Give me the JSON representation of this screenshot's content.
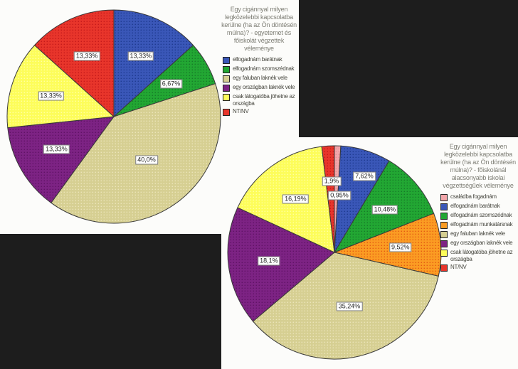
{
  "background_color": "#1d1d1d",
  "panel_color": "#fcfcfa",
  "chart_data": [
    {
      "type": "pie",
      "title": "Egy cigánnyal milyen legközelebbi kapcsolatba kerülne (ha az Ön döntésén múlna)? - egyetemet és főiskolát végzettek véleménye",
      "legend_position": "right",
      "slices": [
        {
          "label": "elfogadnám barátnak",
          "value": 13.33,
          "display": "13,33%",
          "color": "#3a57b8",
          "dot": "#1e3a8f"
        },
        {
          "label": "elfogadnám szomszédnak",
          "value": 6.67,
          "display": "6,67%",
          "color": "#22a733",
          "dot": "#157a28"
        },
        {
          "label": "egy faluban laknék vele",
          "value": 40.0,
          "display": "40,0%",
          "color": "#d6cf92",
          "dot": "#ece5bb",
          "label_offset": [
            46,
            61
          ]
        },
        {
          "label": "egy országban laknék vele",
          "value": 13.33,
          "display": "13,33%",
          "color": "#7d2384",
          "dot": "#5e1264"
        },
        {
          "label": "csak látogatóba jöhetne az országba",
          "value": 13.33,
          "display": "13,33%",
          "color": "#fdfd5a",
          "dot": "#ffffa8"
        },
        {
          "label": "NT/NV",
          "value": 13.33,
          "display": "13,33%",
          "color": "#e8352b",
          "dot": "#c4181a"
        }
      ]
    },
    {
      "type": "pie",
      "title": "Egy cigánnyal milyen legközelebbi kapcsolatba kerülne (ha az Ön döntésén múlna)? - főiskolánál alacsonyabb iskolai végzettségűek véleménye",
      "legend_position": "right",
      "slices": [
        {
          "label": "családba fogadnám",
          "value": 0.95,
          "display": "0,95%",
          "color": "#f2a6aa",
          "dot": "#e8888f",
          "label_offset": [
            7,
            -80
          ]
        },
        {
          "label": "elfogadnám barátnak",
          "value": 7.62,
          "display": "7,62%",
          "color": "#3a57b8",
          "dot": "#1e3a8f",
          "label_offset": [
            42,
            -107
          ]
        },
        {
          "label": "elfogadnám szomszédnak",
          "value": 10.48,
          "display": "10,48%",
          "color": "#22a733",
          "dot": "#157a28"
        },
        {
          "label": "elfogadnám munkatársnak",
          "value": 9.52,
          "display": "9,52%",
          "color": "#fb9c23",
          "dot": "#e25812"
        },
        {
          "label": "egy faluban laknék vele",
          "value": 35.24,
          "display": "35,24%",
          "color": "#d6cf92",
          "dot": "#ece5bb",
          "label_offset": [
            21,
            76
          ]
        },
        {
          "label": "egy országban laknék vele",
          "value": 18.1,
          "display": "18,1%",
          "color": "#7d2384",
          "dot": "#5e1264"
        },
        {
          "label": "csak látogatóba jöhetne az országba",
          "value": 16.19,
          "display": "16,19%",
          "color": "#fdfd5a",
          "dot": "#ffffa8"
        },
        {
          "label": "NT/NV",
          "value": 1.9,
          "display": "1,9%",
          "color": "#e8352b",
          "dot": "#c4181a",
          "label_offset": [
            -4,
            -100
          ]
        }
      ]
    }
  ]
}
